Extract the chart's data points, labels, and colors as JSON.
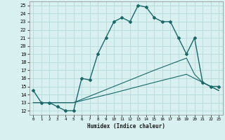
{
  "xlabel": "Humidex (Indice chaleur)",
  "bg_color": "#d8f0f0",
  "grid_color": "#b8dada",
  "line_color": "#1a6868",
  "xlim": [
    -0.5,
    23.5
  ],
  "ylim": [
    11.5,
    25.5
  ],
  "xticks": [
    0,
    1,
    2,
    3,
    4,
    5,
    6,
    7,
    8,
    9,
    10,
    11,
    12,
    13,
    14,
    15,
    16,
    17,
    18,
    19,
    20,
    21,
    22,
    23
  ],
  "yticks": [
    12,
    13,
    14,
    15,
    16,
    17,
    18,
    19,
    20,
    21,
    22,
    23,
    24,
    25
  ],
  "line1_x": [
    0,
    1,
    2,
    3,
    4,
    5,
    6,
    7,
    8,
    9,
    10,
    11,
    12,
    13,
    14,
    15,
    16,
    17,
    18,
    19,
    20,
    21,
    22,
    23
  ],
  "line1_y": [
    14.5,
    13,
    13,
    12.5,
    12,
    12,
    16,
    15.8,
    19,
    21,
    23,
    23.5,
    23,
    25,
    24.8,
    23.5,
    23,
    23,
    21,
    19,
    21,
    15.5,
    15,
    15
  ],
  "line2_x": [
    0,
    5,
    10,
    15,
    19,
    20,
    21,
    22,
    23
  ],
  "line2_y": [
    13,
    13,
    15,
    17,
    18.5,
    16.5,
    15.5,
    15,
    14.5
  ],
  "line3_x": [
    0,
    5,
    10,
    15,
    19,
    20,
    21,
    22,
    23
  ],
  "line3_y": [
    13,
    13,
    14.2,
    15.5,
    16.5,
    16,
    15.5,
    15,
    14.5
  ]
}
